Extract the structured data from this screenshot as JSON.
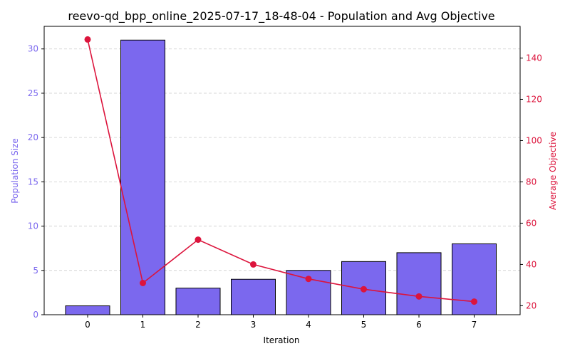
{
  "chart_data": {
    "type": "bar+line",
    "title": "reevo-qd_bpp_online_2025-07-17_18-48-04 - Population and Avg Objective",
    "xlabel": "Iteration",
    "x": [
      0,
      1,
      2,
      3,
      4,
      5,
      6,
      7
    ],
    "x_ticks": [
      "0",
      "1",
      "2",
      "3",
      "4",
      "5",
      "6",
      "7"
    ],
    "series": [
      {
        "name": "Population Size",
        "type": "bar",
        "axis": "left",
        "color": "#7B68EE",
        "values": [
          1,
          31,
          3,
          4,
          5,
          6,
          7,
          8
        ]
      },
      {
        "name": "Average Objective",
        "type": "line",
        "axis": "right",
        "color": "#DC143C",
        "values": [
          149,
          31,
          52,
          40,
          33,
          28,
          24.5,
          22
        ]
      }
    ],
    "y_left": {
      "label": "Population Size",
      "ylim": [
        0,
        32.55
      ],
      "ticks": [
        0,
        5,
        10,
        15,
        20,
        25,
        30
      ],
      "color": "#7B68EE"
    },
    "y_right": {
      "label": "Average Objective",
      "ylim": [
        15.65,
        155.35
      ],
      "ticks": [
        20,
        40,
        60,
        80,
        100,
        120,
        140
      ],
      "color": "#DC143C"
    },
    "grid": "horizontal dashed",
    "legend": "none"
  }
}
